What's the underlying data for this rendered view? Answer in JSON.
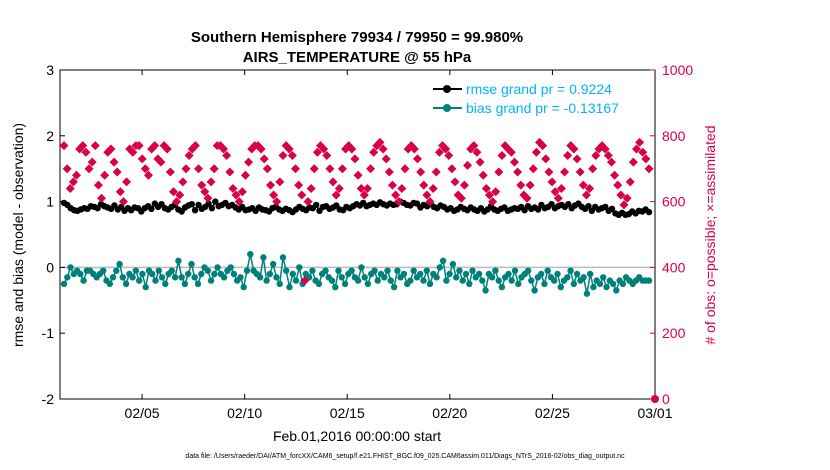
{
  "chart_data": {
    "type": "line",
    "title": "Southern Hemisphere 79934 / 79950 = 99.980%",
    "subtitle": "AIRS_TEMPERATURE @ 55 hPa",
    "xlabel": "Feb.01,2016 00:00:00 start",
    "ylabel_left": "rmse and bias (model - observation)",
    "ylabel_right": "# of obs: o=possible; ×=assimilated",
    "ylim_left": [
      -2,
      3
    ],
    "ylim_right": [
      0,
      1000
    ],
    "xlim": [
      "2016-02-01",
      "2016-03-01"
    ],
    "x_tick_labels": [
      "02/05",
      "02/10",
      "02/15",
      "02/20",
      "02/25",
      "03/01"
    ],
    "y_left_tick_labels": [
      "-2",
      "-1",
      "0",
      "1",
      "2",
      "3"
    ],
    "y_right_tick_labels": [
      "0",
      "200",
      "400",
      "600",
      "800",
      "1000"
    ],
    "footnote": "data file: /Users/raeder/DAI/ATM_forcXX/CAM6_setup/f.e21.FHIST_BGC.f09_025.CAM6assim.011/Diags_NTrS_2016-02/obs_diag_output.nc",
    "legend_position": "top-right",
    "grid": false,
    "zero_line": true,
    "series": [
      {
        "name": "rmse grand pr = 0.9224",
        "color": "#000000",
        "legend_color": "#00b4ff",
        "axis": "left",
        "values": [
          0.98,
          0.95,
          0.9,
          0.87,
          0.86,
          0.88,
          0.9,
          0.89,
          0.93,
          0.92,
          0.9,
          0.96,
          0.93,
          0.91,
          0.89,
          0.94,
          0.88,
          0.92,
          0.86,
          0.9,
          0.87,
          0.91,
          0.9,
          0.85,
          0.9,
          0.93,
          0.89,
          0.97,
          0.92,
          0.96,
          0.9,
          0.88,
          0.92,
          0.95,
          0.88,
          0.85,
          0.91,
          0.94,
          0.96,
          0.87,
          0.95,
          0.89,
          0.92,
          0.97,
          0.9,
          1.0,
          0.93,
          0.95,
          0.98,
          0.93,
          0.95,
          0.91,
          0.88,
          0.92,
          0.87,
          0.88,
          0.9,
          0.86,
          0.91,
          0.88,
          0.87,
          0.85,
          0.9,
          0.92,
          0.88,
          0.86,
          0.89,
          0.87,
          0.84,
          0.88,
          0.92,
          0.89,
          0.87,
          0.91,
          0.9,
          0.95,
          0.86,
          0.92,
          0.93,
          0.89,
          0.91,
          0.94,
          0.88,
          0.87,
          0.92,
          0.9,
          0.93,
          0.96,
          0.94,
          0.98,
          0.93,
          0.95,
          0.97,
          0.95,
          0.99,
          0.96,
          0.94,
          0.97,
          0.95,
          0.96,
          1.0,
          0.98,
          0.95,
          0.94,
          0.98,
          0.97,
          0.91,
          0.95,
          0.93,
          0.97,
          0.92,
          0.9,
          0.94,
          0.92,
          0.88,
          0.9,
          0.86,
          0.88,
          0.92,
          0.89,
          0.87,
          0.91,
          0.88,
          0.86,
          0.9,
          0.85,
          0.88,
          0.93,
          0.88,
          0.86,
          0.89,
          0.91,
          0.86,
          0.88,
          0.9,
          0.89,
          0.92,
          0.87,
          0.93,
          0.89,
          0.91,
          0.88,
          0.95,
          0.9,
          0.92,
          0.96,
          0.9,
          0.93,
          0.95,
          0.92,
          0.96,
          0.9,
          0.94,
          0.97,
          0.92,
          0.89,
          0.93,
          0.86,
          0.92,
          0.88,
          0.9,
          0.92,
          0.86,
          0.89,
          0.82,
          0.8,
          0.83,
          0.8,
          0.81,
          0.85,
          0.82,
          0.86,
          0.85,
          0.88,
          0.84
        ]
      },
      {
        "name": "bias grand pr = -0.13167",
        "color": "#00807a",
        "legend_color": "#00b4ff",
        "axis": "left",
        "values": [
          -0.25,
          -0.15,
          0.0,
          -0.1,
          -0.05,
          -0.1,
          -0.2,
          -0.05,
          -0.05,
          -0.1,
          -0.15,
          -0.1,
          -0.05,
          -0.2,
          -0.25,
          -0.15,
          -0.05,
          0.05,
          -0.15,
          -0.25,
          -0.1,
          -0.15,
          -0.05,
          -0.2,
          -0.1,
          -0.3,
          -0.05,
          -0.1,
          -0.2,
          -0.05,
          -0.15,
          -0.25,
          -0.1,
          -0.05,
          -0.15,
          0.1,
          -0.15,
          -0.25,
          -0.1,
          0.05,
          -0.15,
          -0.25,
          -0.1,
          0.0,
          -0.05,
          -0.2,
          -0.1,
          0.0,
          -0.1,
          -0.15,
          -0.05,
          0.0,
          -0.1,
          -0.2,
          -0.15,
          -0.3,
          -0.05,
          0.2,
          -0.05,
          -0.1,
          -0.15,
          0.15,
          -0.2,
          -0.1,
          0.05,
          -0.15,
          -0.25,
          0.15,
          -0.05,
          -0.3,
          -0.1,
          -0.2,
          0.0,
          -0.25,
          -0.1,
          -0.15,
          -0.05,
          -0.2,
          -0.25,
          -0.1,
          -0.05,
          -0.15,
          -0.2,
          -0.3,
          -0.05,
          -0.15,
          -0.25,
          -0.1,
          -0.05,
          -0.15,
          -0.2,
          0.0,
          -0.15,
          -0.25,
          -0.1,
          -0.05,
          -0.2,
          -0.1,
          -0.15,
          -0.05,
          -0.2,
          -0.3,
          -0.05,
          -0.15,
          -0.1,
          -0.25,
          -0.2,
          -0.05,
          -0.15,
          -0.1,
          -0.2,
          -0.05,
          -0.25,
          -0.1,
          -0.15,
          0.0,
          0.1,
          -0.2,
          -0.1,
          0.05,
          -0.15,
          -0.05,
          -0.2,
          -0.1,
          -0.25,
          -0.05,
          -0.15,
          -0.1,
          -0.2,
          -0.35,
          -0.1,
          -0.15,
          -0.05,
          -0.2,
          -0.3,
          -0.15,
          -0.1,
          -0.2,
          -0.05,
          -0.25,
          -0.15,
          -0.1,
          -0.05,
          -0.2,
          -0.35,
          -0.15,
          -0.1,
          -0.25,
          -0.05,
          -0.15,
          -0.2,
          -0.1,
          -0.3,
          -0.2,
          -0.15,
          -0.05,
          -0.25,
          -0.1,
          -0.2,
          -0.15,
          -0.4,
          -0.1,
          -0.3,
          -0.2,
          -0.25,
          -0.15,
          -0.3,
          -0.2,
          -0.25,
          -0.35,
          -0.2,
          -0.25,
          -0.15,
          -0.2,
          -0.25,
          -0.2,
          -0.15,
          -0.2,
          -0.2,
          -0.2
        ]
      },
      {
        "name": "obs possible",
        "color": "#d8004a",
        "axis": "right",
        "marker": "o",
        "values": [
          0
        ]
      },
      {
        "name": "obs assimilated",
        "color": "#d8004a",
        "axis": "right",
        "marker": "x",
        "values": [
          770,
          700,
          640,
          660,
          680,
          760,
          770,
          750,
          700,
          720,
          770,
          650,
          610,
          680,
          750,
          760,
          720,
          690,
          630,
          600,
          660,
          760,
          750,
          770,
          770,
          730,
          700,
          680,
          760,
          770,
          730,
          720,
          770,
          760,
          690,
          630,
          600,
          620,
          660,
          700,
          740,
          760,
          770,
          700,
          650,
          630,
          610,
          660,
          700,
          770,
          770,
          760,
          740,
          690,
          640,
          620,
          600,
          630,
          680,
          720,
          760,
          770,
          770,
          760,
          730,
          700,
          650,
          620,
          600,
          660,
          740,
          770,
          760,
          740,
          700,
          650,
          620,
          360,
          600,
          640,
          700,
          750,
          770,
          760,
          740,
          700,
          660,
          620,
          640,
          700,
          760,
          770,
          760,
          730,
          680,
          640,
          620,
          640,
          700,
          750,
          770,
          780,
          760,
          730,
          690,
          650,
          620,
          600,
          640,
          700,
          760,
          770,
          760,
          730,
          690,
          650,
          620,
          600,
          640,
          690,
          750,
          770,
          760,
          740,
          700,
          660,
          620,
          610,
          650,
          710,
          760,
          770,
          750,
          720,
          680,
          640,
          620,
          600,
          630,
          690,
          740,
          770,
          760,
          750,
          720,
          690,
          650,
          620,
          610,
          650,
          700,
          750,
          780,
          770,
          730,
          690,
          660,
          630,
          610,
          640,
          690,
          740,
          770,
          760,
          730,
          690,
          650,
          620,
          640,
          700,
          740,
          760,
          770,
          760,
          740,
          720,
          680,
          650,
          620,
          590,
          610,
          660,
          720,
          760,
          780,
          750,
          730,
          700
        ]
      }
    ]
  }
}
